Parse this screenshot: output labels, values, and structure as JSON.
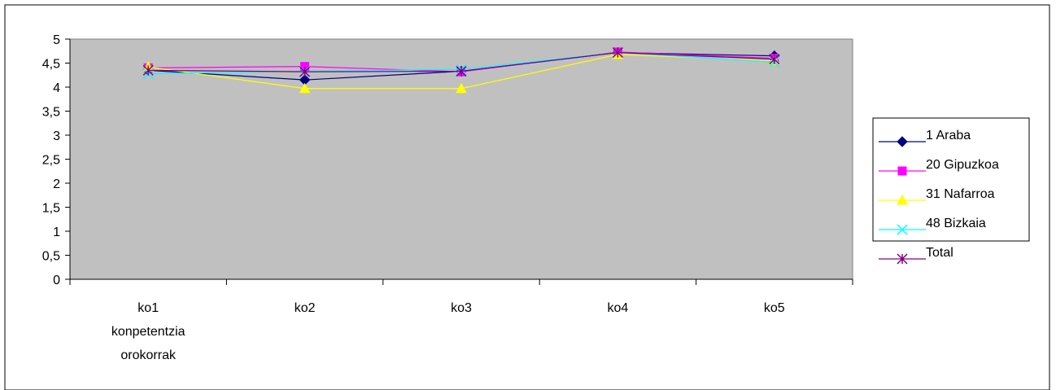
{
  "chart_data": {
    "type": "line",
    "title": "",
    "xlabel": "",
    "ylabel": "",
    "categories": [
      "ko1 konpetentzia orokorrak",
      "ko2",
      "ko3",
      "ko4",
      "ko5"
    ],
    "category_lines": [
      [
        "ko1",
        "konpetentzia",
        "orokorrak"
      ],
      [
        "ko2"
      ],
      [
        "ko3"
      ],
      [
        "ko4"
      ],
      [
        "ko5"
      ]
    ],
    "ylim": [
      0,
      5
    ],
    "yticks": [
      "0",
      "0,5",
      "1",
      "1,5",
      "2",
      "2,5",
      "3",
      "3,5",
      "4",
      "4,5",
      "5"
    ],
    "ytick_values": [
      0,
      0.5,
      1,
      1.5,
      2,
      2.5,
      3,
      3.5,
      4,
      4.5,
      5
    ],
    "grid": false,
    "plot_background": "#c0c0c0",
    "legend_position": "right",
    "series": [
      {
        "name": "1 Araba",
        "color": "#000080",
        "marker": "diamond",
        "values": [
          4.35,
          4.15,
          4.33,
          4.72,
          4.65
        ]
      },
      {
        "name": "20 Gipuzkoa",
        "color": "#ff00ff",
        "marker": "square",
        "values": [
          4.4,
          4.43,
          4.32,
          4.73,
          4.6
        ]
      },
      {
        "name": "31 Nafarroa",
        "color": "#ffff00",
        "marker": "triangle",
        "values": [
          4.42,
          3.97,
          3.97,
          4.68,
          4.55
        ]
      },
      {
        "name": "48 Bizkaia",
        "color": "#00ffff",
        "marker": "x",
        "values": [
          4.28,
          4.33,
          4.37,
          4.72,
          4.52
        ]
      },
      {
        "name": "Total",
        "color": "#800080",
        "marker": "star",
        "values": [
          4.35,
          4.32,
          4.33,
          4.72,
          4.58
        ]
      }
    ]
  }
}
